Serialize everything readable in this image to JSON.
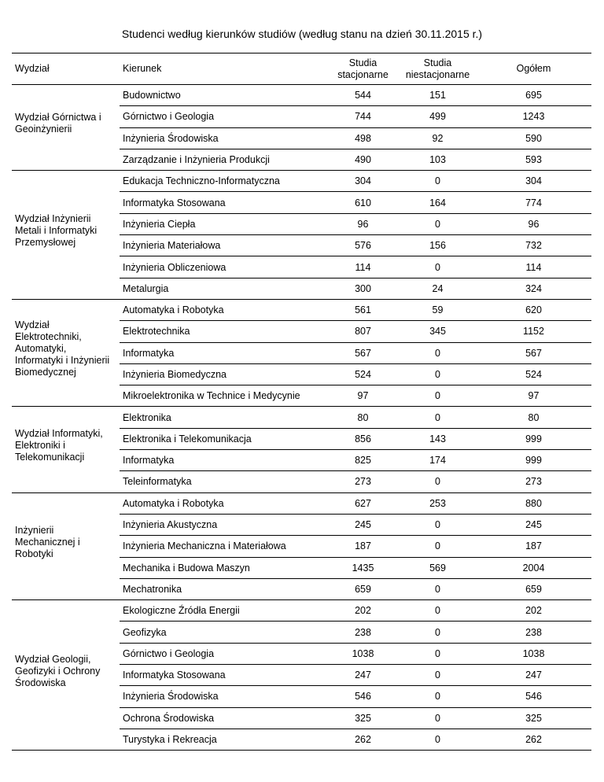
{
  "title": "Studenci według kierunków studiów (według stanu na dzień 30.11.2015 r.)",
  "table": {
    "header": [
      "Wydział",
      "Kierunek",
      "Studia stacjonarne",
      "Studia niestacjonarne",
      "Ogółem"
    ],
    "groups": [
      {
        "faculty": "Wydział Górnictwa i Geoinżynierii",
        "rows": [
          [
            "Budownictwo",
            544,
            151,
            695
          ],
          [
            "Górnictwo i Geologia",
            744,
            499,
            1243
          ],
          [
            "Inżynieria Środowiska",
            498,
            92,
            590
          ],
          [
            "Zarządzanie i Inżynieria Produkcji",
            490,
            103,
            593
          ]
        ]
      },
      {
        "faculty": "Wydział Inżynierii Metali i Informatyki Przemysłowej",
        "rows": [
          [
            "Edukacja Techniczno-Informatyczna",
            304,
            0,
            304
          ],
          [
            "Informatyka Stosowana",
            610,
            164,
            774
          ],
          [
            "Inżynieria Ciepła",
            96,
            0,
            96
          ],
          [
            "Inżynieria Materiałowa",
            576,
            156,
            732
          ],
          [
            "Inżynieria Obliczeniowa",
            114,
            0,
            114
          ],
          [
            "Metalurgia",
            300,
            24,
            324
          ]
        ]
      },
      {
        "faculty": "Wydział Elektrotechniki, Automatyki, Informatyki i Inżynierii Biomedycznej",
        "rows": [
          [
            "Automatyka i Robotyka",
            561,
            59,
            620
          ],
          [
            "Elektrotechnika",
            807,
            345,
            1152
          ],
          [
            "Informatyka",
            567,
            0,
            567
          ],
          [
            "Inżynieria Biomedyczna",
            524,
            0,
            524
          ],
          [
            "Mikroelektronika w Technice i Medycynie",
            97,
            0,
            97
          ]
        ]
      },
      {
        "faculty": "Wydział Informatyki, Elektroniki i Telekomunikacji",
        "rows": [
          [
            "Elektronika",
            80,
            0,
            80
          ],
          [
            "Elektronika i Telekomunikacja",
            856,
            143,
            999
          ],
          [
            "Informatyka",
            825,
            174,
            999
          ],
          [
            "Teleinformatyka",
            273,
            0,
            273
          ]
        ]
      },
      {
        "faculty": "Inżynierii Mechanicznej i Robotyki",
        "rows": [
          [
            "Automatyka i Robotyka",
            627,
            253,
            880
          ],
          [
            "Inżynieria Akustyczna",
            245,
            0,
            245
          ],
          [
            "Inżynieria Mechaniczna i Materiałowa",
            187,
            0,
            187
          ],
          [
            "Mechanika i Budowa Maszyn",
            1435,
            569,
            2004
          ],
          [
            "Mechatronika",
            659,
            0,
            659
          ]
        ]
      },
      {
        "faculty": "Wydział Geologii, Geofizyki i Ochrony Środowiska",
        "rows": [
          [
            "Ekologiczne Źródła Energii",
            202,
            0,
            202
          ],
          [
            "Geofizyka",
            238,
            0,
            238
          ],
          [
            "Górnictwo i Geologia",
            1038,
            0,
            1038
          ],
          [
            "Informatyka Stosowana",
            247,
            0,
            247
          ],
          [
            "Inżynieria Środowiska",
            546,
            0,
            546
          ],
          [
            "Ochrona Środowiska",
            325,
            0,
            325
          ],
          [
            "Turystyka i Rekreacja",
            262,
            0,
            262
          ]
        ]
      }
    ]
  }
}
